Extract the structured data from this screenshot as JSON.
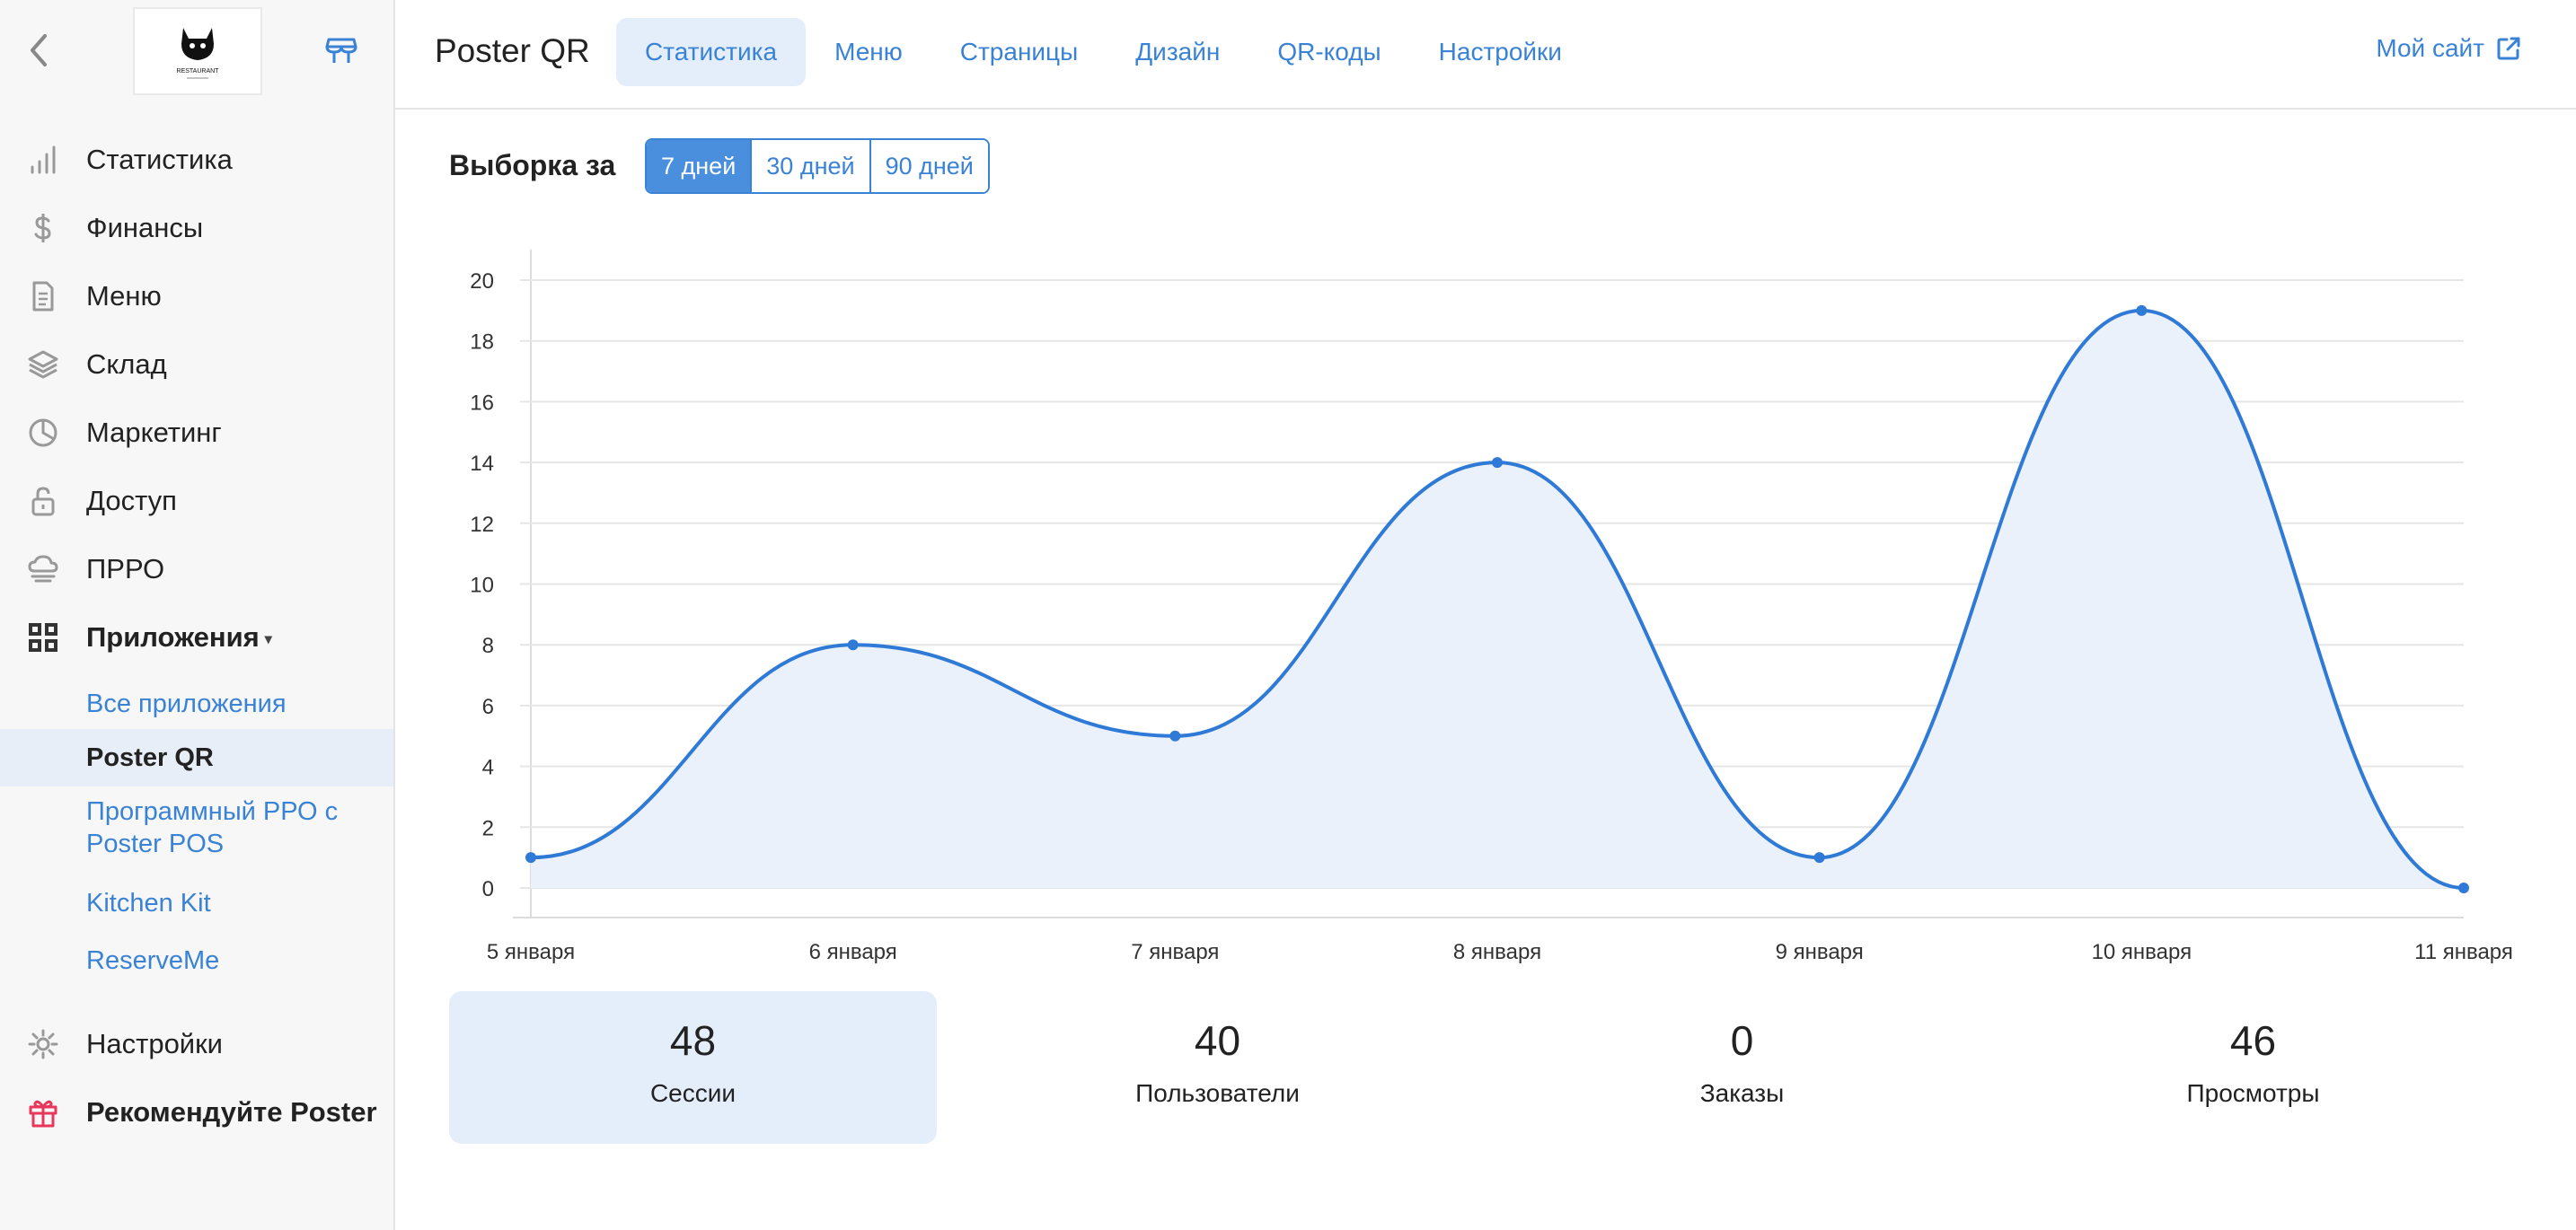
{
  "sidebar": {
    "logo_text": "RESTAURANT",
    "items": [
      {
        "label": "Статистика",
        "icon": "bar-chart-icon"
      },
      {
        "label": "Финансы",
        "icon": "dollar-icon"
      },
      {
        "label": "Меню",
        "icon": "document-icon"
      },
      {
        "label": "Склад",
        "icon": "layers-icon"
      },
      {
        "label": "Маркетинг",
        "icon": "pie-chart-icon"
      },
      {
        "label": "Доступ",
        "icon": "lock-icon"
      },
      {
        "label": "ПРРО",
        "icon": "cloud-register-icon"
      },
      {
        "label": "Приложения",
        "icon": "apps-grid-icon"
      }
    ],
    "apps_sub": [
      {
        "label": "Все приложения"
      },
      {
        "label": "Poster QR"
      },
      {
        "label": "Программный РРО с Poster POS"
      },
      {
        "label": "Kitchen Kit"
      },
      {
        "label": "ReserveMe"
      }
    ],
    "bottom": [
      {
        "label": "Настройки",
        "icon": "gear-icon"
      },
      {
        "label": "Рекомендуйте Poster",
        "icon": "gift-icon"
      }
    ]
  },
  "header": {
    "title": "Poster QR",
    "tabs": [
      {
        "label": "Статистика"
      },
      {
        "label": "Меню"
      },
      {
        "label": "Страницы"
      },
      {
        "label": "Дизайн"
      },
      {
        "label": "QR-коды"
      },
      {
        "label": "Настройки"
      }
    ],
    "my_site": "Мой сайт"
  },
  "range": {
    "label": "Выборка за",
    "options": [
      "7 дней",
      "30 дней",
      "90 дней"
    ],
    "selected": "7 дней"
  },
  "chart_data": {
    "type": "area",
    "x": [
      "5 января",
      "6 января",
      "7 января",
      "8 января",
      "9 января",
      "10 января",
      "11 января"
    ],
    "values": [
      1,
      8,
      5,
      14,
      1,
      19,
      0
    ],
    "yticks": [
      0,
      2,
      4,
      6,
      8,
      10,
      12,
      14,
      16,
      18,
      20
    ],
    "ylim": [
      0,
      20
    ],
    "grid": true,
    "line_color": "#2f7ad6",
    "fill_color": "#eaf1fa"
  },
  "stats": [
    {
      "value": "48",
      "label": "Сессии"
    },
    {
      "value": "40",
      "label": "Пользователи"
    },
    {
      "value": "0",
      "label": "Заказы"
    },
    {
      "value": "46",
      "label": "Просмотры"
    }
  ],
  "colors": {
    "accent": "#3a82d4",
    "active_bg": "#e4eefa",
    "gift": "#e8375a"
  }
}
